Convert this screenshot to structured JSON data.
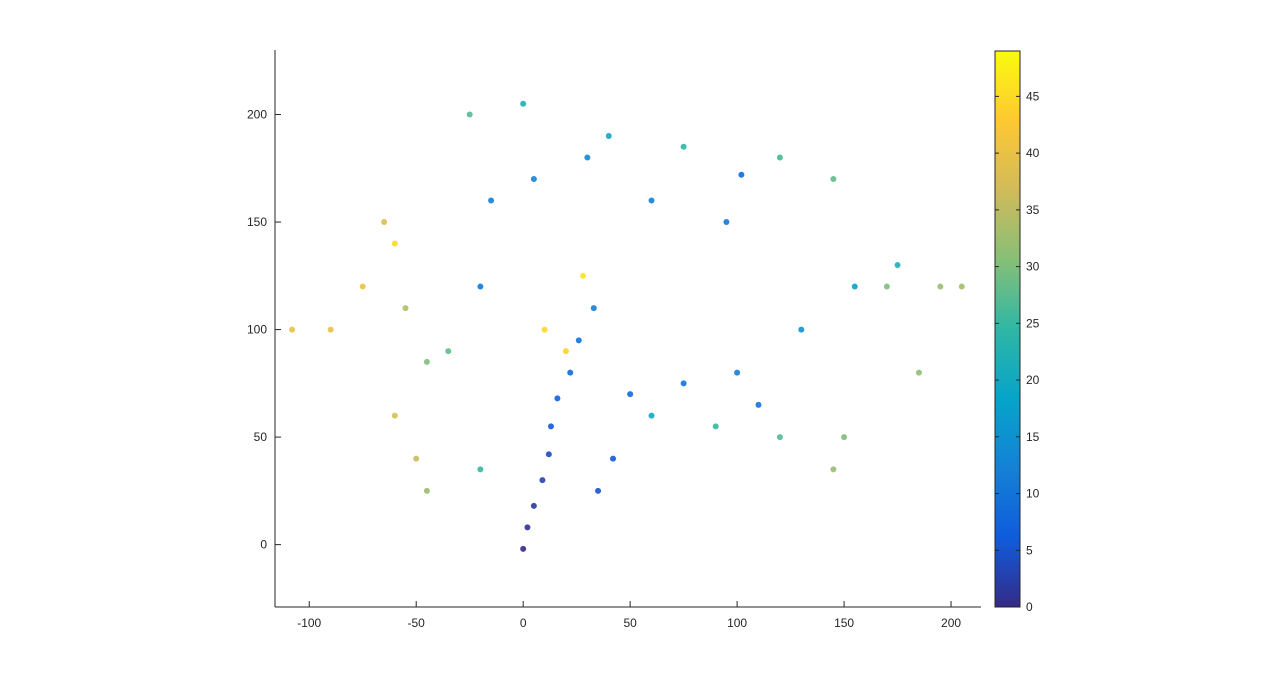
{
  "figure": {
    "background": "#ffffff",
    "axis_color": "#262626"
  },
  "chart_data": {
    "type": "scatter",
    "subtype": "3d-tree-projection colored by value",
    "title": "",
    "xlabel": "",
    "ylabel": "",
    "xlim": [
      -116,
      214
    ],
    "ylim": [
      -29,
      230
    ],
    "xticks": [
      -100,
      -50,
      0,
      50,
      100,
      150,
      200
    ],
    "yticks": [
      0,
      50,
      100,
      150,
      200
    ],
    "xtick_labels": [
      "-100",
      "-50",
      "0",
      "50",
      "100",
      "150",
      "200"
    ],
    "ytick_labels": [
      "0",
      "50",
      "100",
      "150",
      "200"
    ],
    "box": "left and bottom axes only",
    "grid": false,
    "colorbar": {
      "colormap": "parula",
      "range": [
        0,
        49
      ],
      "ticks": [
        0,
        5,
        10,
        15,
        20,
        25,
        30,
        35,
        40,
        45
      ],
      "tick_labels": [
        "0",
        "5",
        "10",
        "15",
        "20",
        "25",
        "30",
        "35",
        "40",
        "45"
      ],
      "stops": [
        "#352a87",
        "#0f5cdd",
        "#1481d6",
        "#06a4ca",
        "#2eb7a4",
        "#87bf77",
        "#d1bb59",
        "#fec832",
        "#f9fb0e"
      ],
      "position": "right"
    },
    "series": [
      {
        "points": [
          {
            "x": 0,
            "y": -2,
            "v": 0
          },
          {
            "x": 2,
            "y": 8,
            "v": 1
          },
          {
            "x": 5,
            "y": 18,
            "v": 2
          },
          {
            "x": 9,
            "y": 30,
            "v": 3
          },
          {
            "x": 12,
            "y": 42,
            "v": 4
          },
          {
            "x": 13,
            "y": 55,
            "v": 6
          },
          {
            "x": 16,
            "y": 68,
            "v": 7
          },
          {
            "x": 22,
            "y": 80,
            "v": 9
          },
          {
            "x": 26,
            "y": 95,
            "v": 10
          },
          {
            "x": 33,
            "y": 110,
            "v": 12
          },
          {
            "x": 42,
            "y": 40,
            "v": 6
          },
          {
            "x": 35,
            "y": 25,
            "v": 5
          },
          {
            "x": 50,
            "y": 70,
            "v": 8
          },
          {
            "x": 75,
            "y": 75,
            "v": 10
          },
          {
            "x": 100,
            "y": 80,
            "v": 12
          },
          {
            "x": 110,
            "y": 65,
            "v": 10
          },
          {
            "x": 130,
            "y": 100,
            "v": 15
          },
          {
            "x": 155,
            "y": 120,
            "v": 18
          },
          {
            "x": 175,
            "y": 130,
            "v": 22
          },
          {
            "x": 95,
            "y": 150,
            "v": 11
          },
          {
            "x": 102,
            "y": 172,
            "v": 9
          },
          {
            "x": 60,
            "y": 160,
            "v": 12
          },
          {
            "x": 30,
            "y": 180,
            "v": 14
          },
          {
            "x": 5,
            "y": 170,
            "v": 13
          },
          {
            "x": -15,
            "y": 160,
            "v": 12
          },
          {
            "x": -20,
            "y": 120,
            "v": 11
          },
          {
            "x": -35,
            "y": 90,
            "v": 28
          },
          {
            "x": -45,
            "y": 85,
            "v": 30
          },
          {
            "x": -55,
            "y": 110,
            "v": 34
          },
          {
            "x": -65,
            "y": 150,
            "v": 38
          },
          {
            "x": -75,
            "y": 120,
            "v": 40
          },
          {
            "x": -90,
            "y": 100,
            "v": 40
          },
          {
            "x": -108,
            "y": 100,
            "v": 40
          },
          {
            "x": -60,
            "y": 60,
            "v": 38
          },
          {
            "x": -50,
            "y": 40,
            "v": 36
          },
          {
            "x": -45,
            "y": 25,
            "v": 32
          },
          {
            "x": -20,
            "y": 35,
            "v": 25
          },
          {
            "x": -25,
            "y": 200,
            "v": 27
          },
          {
            "x": 0,
            "y": 205,
            "v": 22
          },
          {
            "x": 40,
            "y": 190,
            "v": 20
          },
          {
            "x": 75,
            "y": 185,
            "v": 24
          },
          {
            "x": 120,
            "y": 180,
            "v": 26
          },
          {
            "x": 145,
            "y": 170,
            "v": 28
          },
          {
            "x": 170,
            "y": 120,
            "v": 30
          },
          {
            "x": 195,
            "y": 120,
            "v": 32
          },
          {
            "x": 205,
            "y": 120,
            "v": 33
          },
          {
            "x": 185,
            "y": 80,
            "v": 31
          },
          {
            "x": 150,
            "y": 50,
            "v": 30
          },
          {
            "x": 145,
            "y": 35,
            "v": 32
          },
          {
            "x": 120,
            "y": 50,
            "v": 27
          },
          {
            "x": 90,
            "y": 55,
            "v": 25
          },
          {
            "x": 60,
            "y": 60,
            "v": 20
          },
          {
            "x": 20,
            "y": 90,
            "v": 44
          },
          {
            "x": 10,
            "y": 100,
            "v": 45
          },
          {
            "x": 28,
            "y": 125,
            "v": 46
          },
          {
            "x": -60,
            "y": 140,
            "v": 45
          }
        ]
      }
    ]
  }
}
